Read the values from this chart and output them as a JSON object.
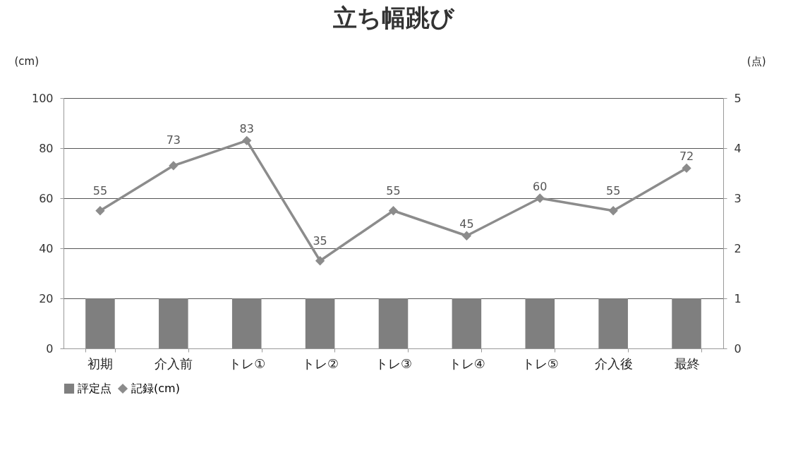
{
  "chart_data": {
    "type": "bar",
    "title": "立ち幅跳び",
    "ylabel": "(cm)",
    "y2label": "(点)",
    "categories": [
      "初期",
      "介入前",
      "トレ①",
      "トレ②",
      "トレ③",
      "トレ④",
      "トレ⑤",
      "介入後",
      "最終"
    ],
    "series": [
      {
        "name": "評定点",
        "axis": "y2",
        "color": "#7f7f7f",
        "values": [
          1,
          1,
          1,
          1,
          1,
          1,
          1,
          1,
          1
        ]
      },
      {
        "name": "記録(cm)",
        "type": "line",
        "color": "#8c8c8c",
        "values": [
          55,
          73,
          83,
          35,
          55,
          45,
          60,
          55,
          72
        ],
        "value_labels": [
          "55",
          "73",
          "83",
          "35",
          "55",
          "45",
          "60",
          "55",
          "72"
        ]
      }
    ],
    "ylim": [
      0,
      100
    ],
    "yticks": [
      0,
      20,
      40,
      60,
      80,
      100
    ],
    "y2lim": [
      0,
      5
    ],
    "y2ticks": [
      0,
      1,
      2,
      3,
      4,
      5
    ],
    "grid": "y",
    "legend": "bottom",
    "marker": "diamond",
    "line_style": "solid"
  }
}
